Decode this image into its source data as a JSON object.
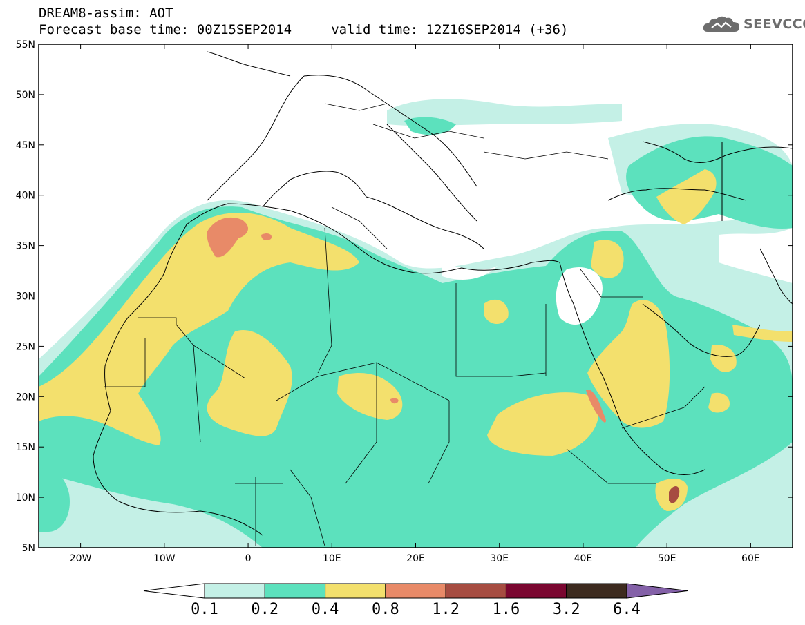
{
  "title": {
    "line1": "DREAM8-assim: AOT",
    "line2": "Forecast base time: 00Z15SEP2014     valid time: 12Z16SEP2014 (+36)"
  },
  "logo": {
    "text": "SEEVCCC",
    "icon": "cloud-logo-icon",
    "color": "#6d6d6d"
  },
  "map": {
    "lon_range": [
      -25,
      65
    ],
    "lat_range": [
      5,
      55
    ],
    "lat_labels": [
      "55N",
      "50N",
      "45N",
      "40N",
      "35N",
      "30N",
      "25N",
      "20N",
      "15N",
      "10N",
      "5N"
    ],
    "lon_labels": [
      "20W",
      "10W",
      "0",
      "10E",
      "20E",
      "30E",
      "40E",
      "50E",
      "60E"
    ]
  },
  "colorbar": {
    "levels": [
      "0.1",
      "0.2",
      "0.4",
      "0.8",
      "1.2",
      "1.6",
      "3.2",
      "6.4"
    ],
    "colors": [
      "#ffffff",
      "#c4f0e6",
      "#5ce1bd",
      "#f3e06d",
      "#e88a68",
      "#a64c41",
      "#7a0630",
      "#3d2b1f",
      "#8461a8"
    ]
  }
}
